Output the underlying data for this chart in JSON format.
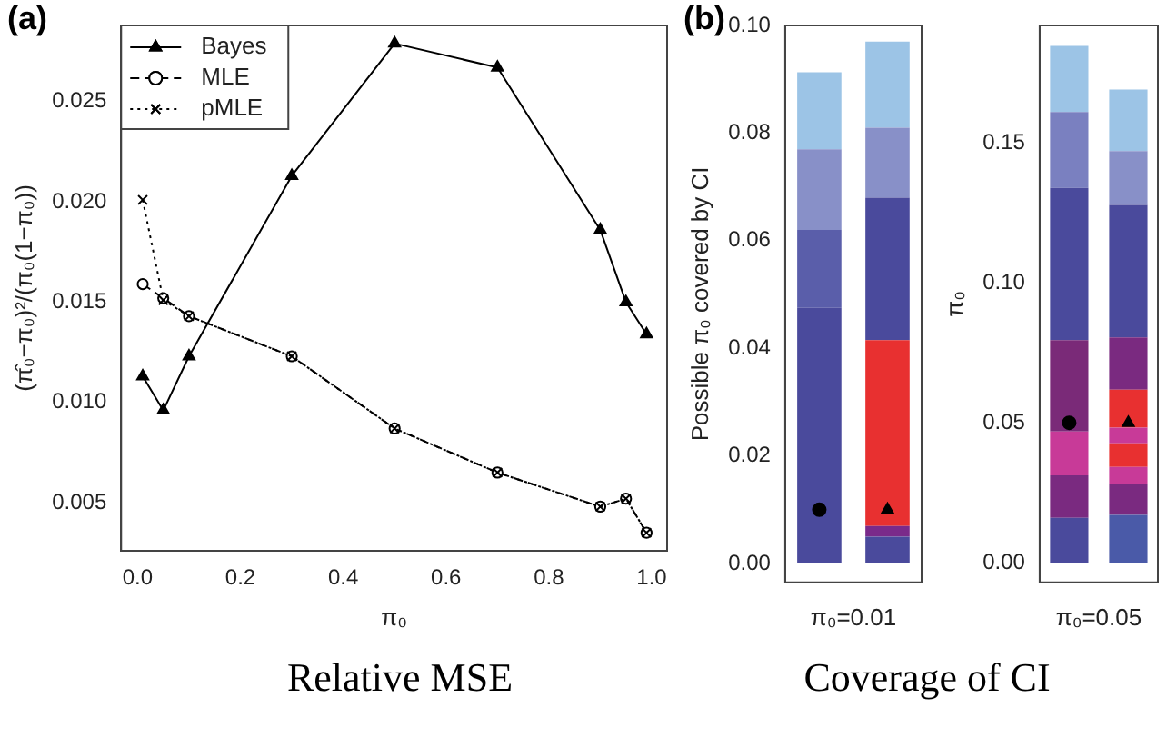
{
  "chart_data": [
    {
      "type": "line",
      "title": "(a)",
      "xlabel": "π₀",
      "ylabel": "(π̂₀−π₀)²/(π₀(1−π₀))",
      "legend": "top left",
      "x": [
        0.01,
        0.05,
        0.1,
        0.3,
        0.5,
        0.7,
        0.9,
        0.95,
        0.99
      ],
      "xlim": [
        -0.032,
        1.03
      ],
      "xticks": [
        {
          "value": 0,
          "label": "0.0"
        },
        0.2,
        0.4,
        0.6,
        0.8,
        {
          "value": 1,
          "label": "1.0"
        }
      ],
      "ylim": [
        0.0026,
        0.0288
      ],
      "yticks": [
        0.005,
        {
          "value": 0.01,
          "label": "0.010"
        },
        0.015,
        {
          "value": 0.02,
          "label": "0.020"
        },
        0.025
      ],
      "series": [
        {
          "name": "Bayes",
          "color": "#000000",
          "marker": "triangle",
          "line_style": "solid",
          "values": [
            0.0113,
            0.0096,
            0.0123,
            0.0213,
            0.0279,
            0.0267,
            0.0186,
            0.015,
            0.0134
          ]
        },
        {
          "name": "MLE",
          "color": "#000000",
          "marker": "circle",
          "line_style": "dashed",
          "values": [
            0.0159,
            0.0152,
            0.0143,
            0.0123,
            0.0087,
            0.0065,
            0.0048,
            0.0052,
            0.0035
          ]
        },
        {
          "name": "pMLE",
          "color": "#000000",
          "marker": "cross",
          "line_style": "dotted",
          "values": [
            0.0201,
            0.0151,
            0.0143,
            0.0123,
            0.0087,
            0.0065,
            0.0048,
            0.0052,
            0.0035
          ]
        }
      ],
      "annotations": [
        "Relative MSE"
      ]
    },
    {
      "type": "bar",
      "title": "(b)",
      "xlabel": "π₀=0.01",
      "ylabel": "Possible π₀ covered by CI",
      "stacked": true,
      "legend": false,
      "tick_labels": "y",
      "categories": [
        null,
        null
      ],
      "ylim": [
        -0.0035,
        0.1
      ],
      "yticks": [
        {
          "value": 0,
          "label": "0.00"
        },
        0.02,
        0.04,
        0.06,
        0.08,
        {
          "value": 0.1,
          "label": "0.10"
        }
      ],
      "series": [
        {
          "colors": [
            "#4a4a9c",
            "#4a4a9c"
          ],
          "values": [
            0.0475,
            0.005
          ]
        },
        {
          "colors": [
            "#5a5eaa",
            "#7a2a8a"
          ],
          "values": [
            0.0145,
            0.002
          ]
        },
        {
          "colors": [
            "#8890c8",
            "#e83030"
          ],
          "values": [
            0.015,
            0.0345
          ]
        },
        {
          "colors": [
            "#9cc4e6",
            "#4a4a9c"
          ],
          "values": [
            0.0143,
            0.0265
          ]
        },
        {
          "colors": [
            "#8890c8",
            "#8890c8"
          ],
          "values": [
            null,
            0.013
          ]
        },
        {
          "colors": [
            "#9cc4e6",
            "#9cc4e6"
          ],
          "values": [
            null,
            0.016
          ]
        },
        {
          "type": "scatter",
          "color": "#000000",
          "marker": "circle",
          "values": [
            0.01,
            null
          ]
        },
        {
          "type": "scatter",
          "color": "#000000",
          "marker": "triangle",
          "values": [
            null,
            0.01
          ]
        }
      ],
      "annotations": [
        "Coverage of CI"
      ]
    },
    {
      "type": "bar",
      "xlabel": "π₀=0.05",
      "ylabel": "π₀",
      "stacked": true,
      "legend": false,
      "tick_labels": "y",
      "categories": [
        null,
        null
      ],
      "ylim": [
        -0.007,
        0.1919
      ],
      "yticks": [
        {
          "value": 0,
          "label": "0.00"
        },
        0.05,
        {
          "value": 0.1,
          "label": "0.10"
        },
        0.15
      ],
      "series": [
        {
          "colors": [
            "#4a4a9c",
            "#4a5aa8"
          ],
          "values": [
            0.0161,
            0.0171
          ]
        },
        {
          "colors": [
            "#7a2a80",
            "#7a2a80"
          ],
          "values": [
            0.0151,
            0.0111
          ]
        },
        {
          "colors": [
            "#c83a98",
            "#c83a98"
          ],
          "values": [
            0.0157,
            0.006
          ]
        },
        {
          "colors": [
            "#7a2a78",
            "#e83030"
          ],
          "values": [
            0.0326,
            0.0085
          ]
        },
        {
          "colors": [
            "#4a4a9c",
            "#c83a98"
          ],
          "values": [
            0.0544,
            0.0056
          ]
        },
        {
          "colors": [
            "#7a80c0",
            "#e83030"
          ],
          "values": [
            0.0271,
            0.0135
          ]
        },
        {
          "colors": [
            "#9cc4e6",
            "#7a2a80"
          ],
          "values": [
            0.0236,
            0.0187
          ]
        },
        {
          "colors": [
            "#4a4a9c",
            "#4a4a9c"
          ],
          "values": [
            null,
            0.0473
          ]
        },
        {
          "colors": [
            "#8890c8",
            "#8890c8"
          ],
          "values": [
            null,
            0.0192
          ]
        },
        {
          "colors": [
            "#9cc4e6",
            "#9cc4e6"
          ],
          "values": [
            null,
            0.022
          ]
        },
        {
          "type": "scatter",
          "color": "#000000",
          "marker": "circle",
          "values": [
            0.05,
            null
          ]
        },
        {
          "type": "scatter",
          "color": "#000000",
          "marker": "triangle",
          "values": [
            null,
            0.05
          ]
        }
      ]
    }
  ]
}
